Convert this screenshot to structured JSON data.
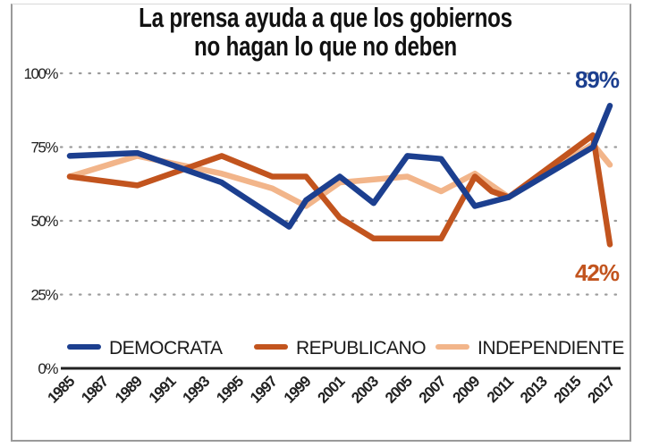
{
  "chart_data": {
    "type": "line",
    "title_lines": [
      "La prensa ayuda a que los gobiernos",
      "no hagan lo que no deben"
    ],
    "xlabel": "",
    "ylabel": "",
    "ylim": [
      0,
      100
    ],
    "y_ticks": [
      {
        "value": 0,
        "label": "0%"
      },
      {
        "value": 25,
        "label": "25%"
      },
      {
        "value": 50,
        "label": "50%"
      },
      {
        "value": 75,
        "label": "75%"
      },
      {
        "value": 100,
        "label": "100%"
      }
    ],
    "x_ticks": [
      "1985",
      "1987",
      "1989",
      "1991",
      "1993",
      "1995",
      "1997",
      "1999",
      "2001",
      "2003",
      "2005",
      "2007",
      "2009",
      "2011",
      "2013",
      "2015",
      "2017"
    ],
    "xlim": [
      1985,
      2017
    ],
    "grid": "horizontal-dotted",
    "legend_position": "bottom",
    "series": [
      {
        "name": "DEMOCRATA",
        "color": "#1c3f8f",
        "points": [
          [
            1985,
            72
          ],
          [
            1989,
            73
          ],
          [
            1994,
            63
          ],
          [
            1998,
            48
          ],
          [
            1999,
            57
          ],
          [
            2001,
            65
          ],
          [
            2003,
            56
          ],
          [
            2005,
            72
          ],
          [
            2007,
            71
          ],
          [
            2009,
            55
          ],
          [
            2011,
            58
          ],
          [
            2016,
            75
          ],
          [
            2017,
            89
          ]
        ]
      },
      {
        "name": "REPUBLICANO",
        "color": "#c2541e",
        "points": [
          [
            1985,
            65
          ],
          [
            1989,
            62
          ],
          [
            1994,
            72
          ],
          [
            1997,
            65
          ],
          [
            1999,
            65
          ],
          [
            2001,
            51
          ],
          [
            2003,
            44
          ],
          [
            2007,
            44
          ],
          [
            2009,
            65
          ],
          [
            2010,
            60
          ],
          [
            2011,
            58
          ],
          [
            2016,
            79
          ],
          [
            2017,
            42
          ]
        ]
      },
      {
        "name": "INDEPENDIENTE",
        "color": "#f2b58a",
        "points": [
          [
            1985,
            65
          ],
          [
            1989,
            72
          ],
          [
            1994,
            66
          ],
          [
            1997,
            61
          ],
          [
            1999,
            55
          ],
          [
            2001,
            63
          ],
          [
            2005,
            65
          ],
          [
            2007,
            60
          ],
          [
            2009,
            66
          ],
          [
            2011,
            58
          ],
          [
            2016,
            76
          ],
          [
            2017,
            69
          ]
        ]
      }
    ],
    "annotations": [
      {
        "text": "89%",
        "series": "DEMOCRATA",
        "x": 2017,
        "y": 89
      },
      {
        "text": "42%",
        "series": "REPUBLICANO",
        "x": 2017,
        "y": 42
      }
    ]
  }
}
